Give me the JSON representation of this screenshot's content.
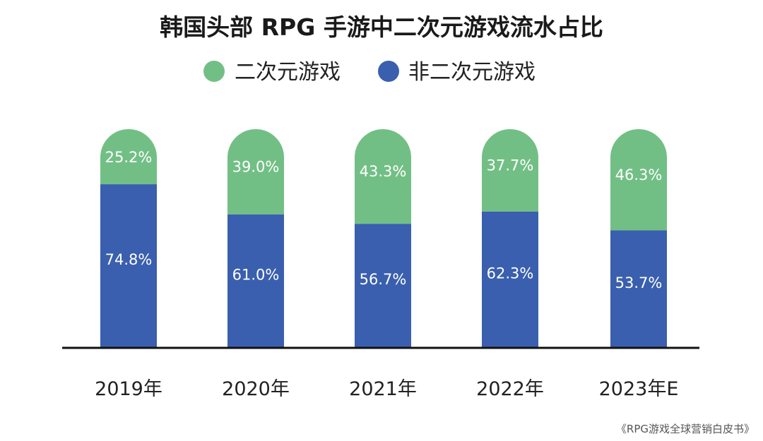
{
  "chart_data": {
    "type": "bar",
    "stacked": true,
    "normalized": true,
    "title": "韩国头部 RPG 手游中二次元游戏流水占比",
    "categories": [
      "2019年",
      "2020年",
      "2021年",
      "2022年",
      "2023年E"
    ],
    "series": [
      {
        "name": "非二次元游戏",
        "values": [
          74.8,
          61.0,
          56.7,
          62.3,
          53.7
        ],
        "color": "#3a5fae"
      },
      {
        "name": "二次元游戏",
        "values": [
          25.2,
          39.0,
          43.3,
          37.7,
          46.3
        ],
        "color": "#72bf85"
      }
    ],
    "legend_order": [
      "二次元游戏",
      "非二次元游戏"
    ],
    "legend_placement": "top",
    "value_suffix": "%",
    "ylim": [
      0,
      100
    ],
    "grid": false,
    "source": "《RPG游戏全球营销白皮书》"
  }
}
